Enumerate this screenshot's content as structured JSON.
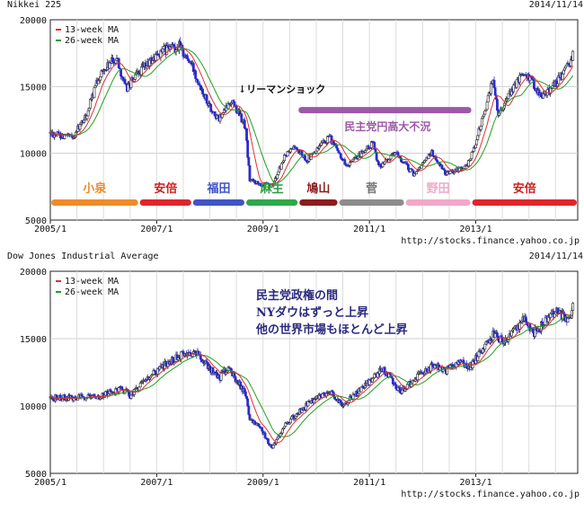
{
  "chart_data": [
    {
      "type": "candlestick",
      "title": "Nikkei 225",
      "date": "2014/11/14",
      "source": "http://stocks.finance.yahoo.co.jp",
      "ylim": [
        5000,
        20000
      ],
      "xlim": [
        "2005/1",
        "2014/12"
      ],
      "yticks": [
        "5000",
        "10000",
        "15000",
        "20000"
      ],
      "xticks": [
        "2005/1",
        "2007/1",
        "2009/1",
        "2011/1",
        "2013/1"
      ],
      "legend": [
        "13-week MA",
        "26-week MA"
      ],
      "anchors": [
        [
          "2005/1",
          11500
        ],
        [
          "2005/6",
          11200
        ],
        [
          "2005/9",
          12700
        ],
        [
          "2005/12",
          15800
        ],
        [
          "2006/4",
          17200
        ],
        [
          "2006/6",
          14800
        ],
        [
          "2006/10",
          16400
        ],
        [
          "2007/2",
          17600
        ],
        [
          "2007/6",
          18100
        ],
        [
          "2007/9",
          16500
        ],
        [
          "2008/1",
          13500
        ],
        [
          "2008/3",
          12500
        ],
        [
          "2008/6",
          14000
        ],
        [
          "2008/9",
          12000
        ],
        [
          "2008/10",
          8000
        ],
        [
          "2009/3",
          7500
        ],
        [
          "2009/6",
          9800
        ],
        [
          "2009/8",
          10500
        ],
        [
          "2009/11",
          9500
        ],
        [
          "2010/4",
          11200
        ],
        [
          "2010/8",
          9000
        ],
        [
          "2011/2",
          10800
        ],
        [
          "2011/3",
          9000
        ],
        [
          "2011/7",
          10000
        ],
        [
          "2011/11",
          8400
        ],
        [
          "2012/3",
          10100
        ],
        [
          "2012/6",
          8500
        ],
        [
          "2012/11",
          9000
        ],
        [
          "2013/1",
          10800
        ],
        [
          "2013/5",
          15600
        ],
        [
          "2013/6",
          13000
        ],
        [
          "2013/12",
          16200
        ],
        [
          "2014/4",
          14200
        ],
        [
          "2014/9",
          16000
        ],
        [
          "2014/11",
          17400
        ]
      ],
      "annotations": {
        "lehman": "↓リーマンショック",
        "dpj": "民主党円高大不況"
      },
      "periods": [
        {
          "label": "小泉",
          "color": "#f08a2a",
          "text_color": "#f08a2a",
          "start": "2005/1",
          "end": "2006/9"
        },
        {
          "label": "安倍",
          "color": "#e0252a",
          "text_color": "#d02020",
          "start": "2006/9",
          "end": "2007/9"
        },
        {
          "label": "福田",
          "color": "#3f55c8",
          "text_color": "#3f55c8",
          "start": "2007/9",
          "end": "2008/9"
        },
        {
          "label": "麻生",
          "color": "#2ea84a",
          "text_color": "#2e9a44",
          "start": "2008/9",
          "end": "2009/9"
        },
        {
          "label": "鳩山",
          "color": "#8c1c1c",
          "text_color": "#8c1c1c",
          "start": "2009/9",
          "end": "2010/6"
        },
        {
          "label": "菅",
          "color": "#8c8c8c",
          "text_color": "#777777",
          "start": "2010/6",
          "end": "2011/9"
        },
        {
          "label": "野田",
          "color": "#f2a8c8",
          "text_color": "#f2a8c8",
          "start": "2011/9",
          "end": "2012/12"
        },
        {
          "label": "安倍",
          "color": "#e0252a",
          "text_color": "#d02020",
          "start": "2012/12",
          "end": "2014/12"
        }
      ],
      "dpj_bar": {
        "color": "#9b59a8",
        "start": "2009/9",
        "end": "2012/12",
        "value": 13200
      },
      "colors": {
        "up": "#ffffff",
        "down": "#2b2bd0",
        "ma13": "#e03030",
        "ma26": "#20a020"
      }
    },
    {
      "type": "candlestick",
      "title": "Dow Jones Industrial Average",
      "date": "2014/11/14",
      "source": "http://stocks.finance.yahoo.co.jp",
      "ylim": [
        5000,
        20000
      ],
      "xlim": [
        "2005/1",
        "2014/12"
      ],
      "yticks": [
        "5000",
        "10000",
        "15000",
        "20000"
      ],
      "xticks": [
        "2005/1",
        "2007/1",
        "2009/1",
        "2011/1",
        "2013/1"
      ],
      "legend": [
        "13-week MA",
        "26-week MA"
      ],
      "anchors": [
        [
          "2005/1",
          10600
        ],
        [
          "2005/12",
          10700
        ],
        [
          "2006/5",
          11300
        ],
        [
          "2006/7",
          10800
        ],
        [
          "2006/12",
          12400
        ],
        [
          "2007/7",
          13900
        ],
        [
          "2007/10",
          14000
        ],
        [
          "2008/3",
          12000
        ],
        [
          "2008/5",
          12900
        ],
        [
          "2008/9",
          11000
        ],
        [
          "2008/10",
          9000
        ],
        [
          "2008/12",
          8600
        ],
        [
          "2009/3",
          6800
        ],
        [
          "2009/6",
          8600
        ],
        [
          "2009/12",
          10400
        ],
        [
          "2010/4",
          11100
        ],
        [
          "2010/7",
          10000
        ],
        [
          "2011/4",
          12800
        ],
        [
          "2011/8",
          11000
        ],
        [
          "2011/12",
          12200
        ],
        [
          "2012/4",
          13200
        ],
        [
          "2012/6",
          12500
        ],
        [
          "2012/10",
          13500
        ],
        [
          "2012/11",
          12600
        ],
        [
          "2013/5",
          15300
        ],
        [
          "2013/8",
          14800
        ],
        [
          "2013/12",
          16500
        ],
        [
          "2014/2",
          15400
        ],
        [
          "2014/7",
          17000
        ],
        [
          "2014/10",
          16300
        ],
        [
          "2014/11",
          17600
        ]
      ],
      "annotation_lines": [
        "民主党政権の間",
        "NYダウはずっと上昇",
        "他の世界市場もほとんど上昇"
      ],
      "colors": {
        "up": "#ffffff",
        "down": "#2b2bd0",
        "ma13": "#e03030",
        "ma26": "#20a020"
      }
    }
  ]
}
